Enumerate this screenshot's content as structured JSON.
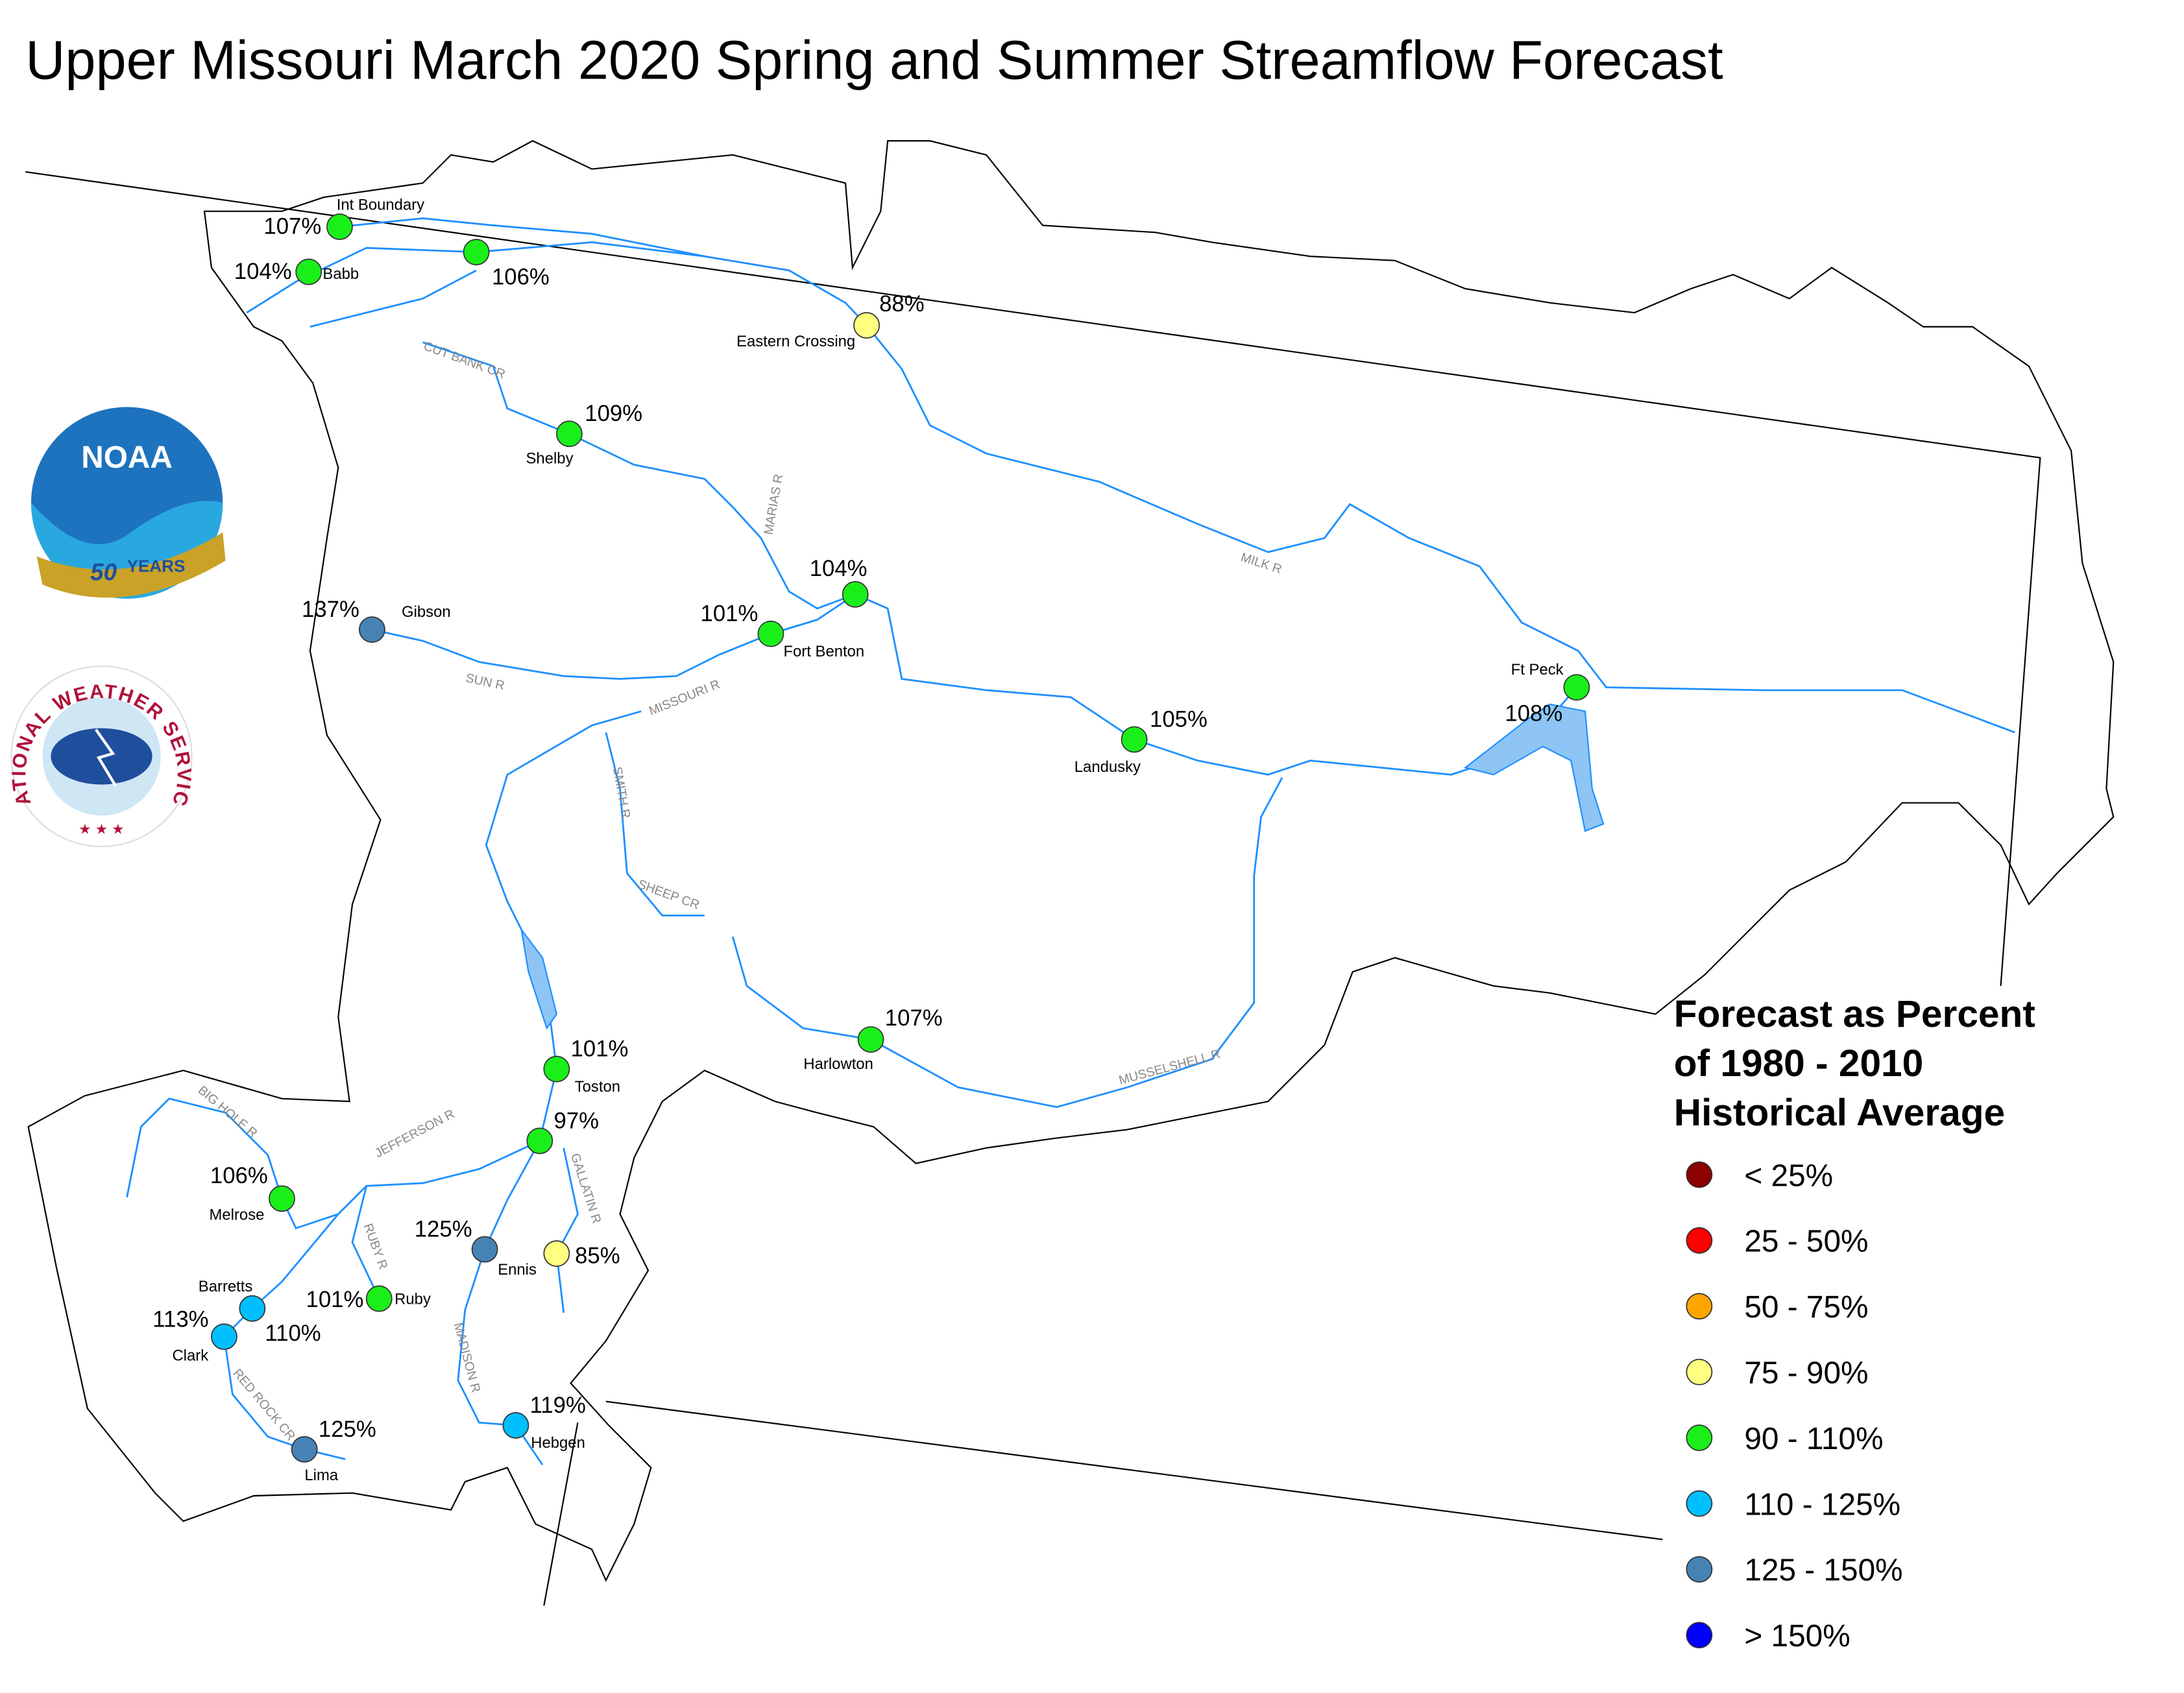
{
  "title": "Upper Missouri March 2020 Spring and Summer Streamflow Forecast",
  "logos": {
    "noaa": "NOAA",
    "noaa_years_number": "50",
    "noaa_years_word": "YEARS",
    "nws": "NATIONAL WEATHER SERVICE"
  },
  "stations": [
    {
      "name": "Int Boundary",
      "label": "107%",
      "color": "#1aef1a"
    },
    {
      "name": "Babb",
      "label": "104%",
      "color": "#1aef1a"
    },
    {
      "label": "106%",
      "color": "#1aef1a"
    },
    {
      "name": "Eastern Crossing",
      "label": "88%",
      "color": "#ffff80"
    },
    {
      "name": "Shelby",
      "label": "109%",
      "color": "#1aef1a"
    },
    {
      "name": "Gibson",
      "label": "137%",
      "color": "#4682b4"
    },
    {
      "name": "Fort Benton",
      "label": "101%",
      "color": "#1aef1a"
    },
    {
      "label": "104%",
      "color": "#1aef1a"
    },
    {
      "name": "Landusky",
      "label": "105%",
      "color": "#1aef1a"
    },
    {
      "name": "Ft Peck",
      "label": "108%",
      "color": "#1aef1a"
    },
    {
      "name": "Harlowton",
      "label": "107%",
      "color": "#1aef1a"
    },
    {
      "name": "Toston",
      "label": "101%",
      "color": "#1aef1a"
    },
    {
      "label": "97%",
      "color": "#1aef1a"
    },
    {
      "name": "Melrose",
      "label": "106%",
      "color": "#1aef1a"
    },
    {
      "name": "Ennis",
      "label": "125%",
      "color": "#4682b4"
    },
    {
      "label": "85%",
      "color": "#ffff80"
    },
    {
      "name": "Ruby",
      "label": "101%",
      "color": "#1aef1a"
    },
    {
      "name": "Barretts",
      "label": "110%",
      "color": "#00bfff"
    },
    {
      "name": "Clark",
      "label": "113%",
      "color": "#00bfff"
    },
    {
      "name": "Lima",
      "label": "125%",
      "color": "#4682b4"
    },
    {
      "name": "Hebgen",
      "label": "119%",
      "color": "#00bfff"
    }
  ],
  "rivers": [
    "CUT BANK CR",
    "MILK R",
    "MARIAS R",
    "MISSOURI R",
    "SUN R",
    "SMITH R",
    "SHEEP CR",
    "MUSSELSHELL R",
    "BIG HOLE R",
    "JEFFERSON R",
    "RUBY R",
    "GALLATIN R",
    "MADISON R",
    "RED ROCK CR"
  ],
  "legend": {
    "title": [
      "Forecast as Percent",
      "of 1980 - 2010",
      "Historical Average"
    ],
    "items": [
      {
        "label": "< 25%",
        "color": "#8b0000"
      },
      {
        "label": "25 - 50%",
        "color": "#ff0000"
      },
      {
        "label": "50 - 75%",
        "color": "#ffa500"
      },
      {
        "label": "75 - 90%",
        "color": "#ffff80"
      },
      {
        "label": "90 - 110%",
        "color": "#1aef1a"
      },
      {
        "label": "110 - 125%",
        "color": "#00bfff"
      },
      {
        "label": "125 - 150%",
        "color": "#4682b4"
      },
      {
        "label": "> 150%",
        "color": "#0000ff"
      }
    ]
  }
}
